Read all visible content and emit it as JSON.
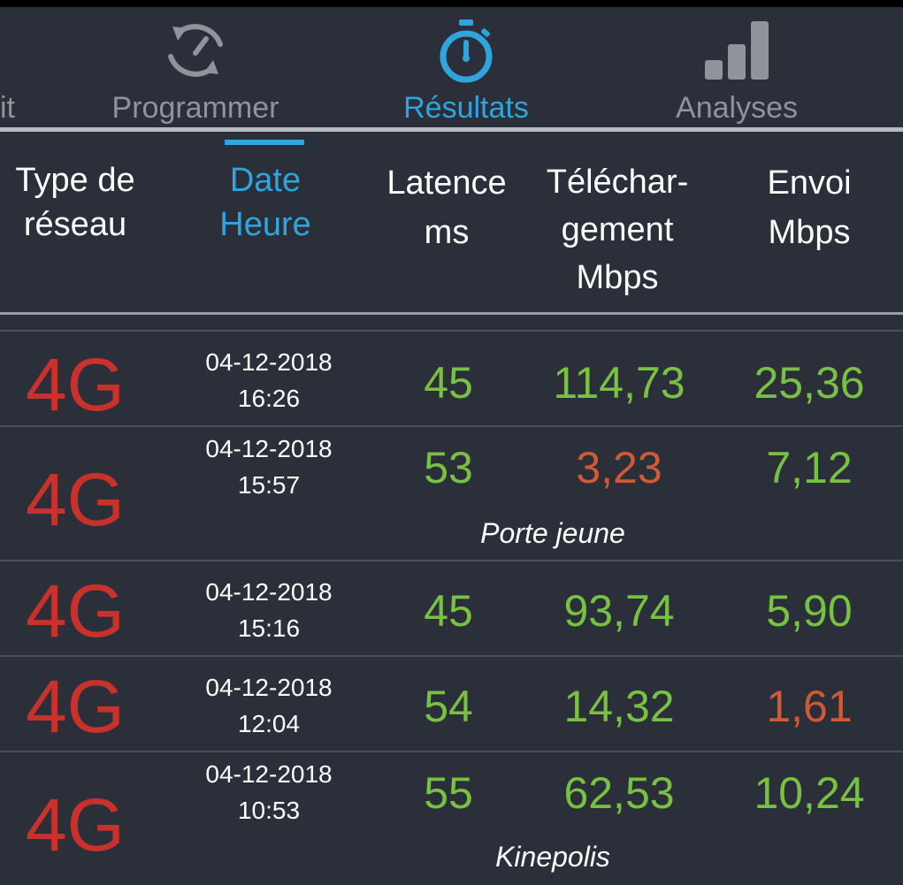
{
  "tabs": [
    {
      "label": "it",
      "icon": "partial-tab"
    },
    {
      "label": "Programmer",
      "icon": "refresh-gauge-icon"
    },
    {
      "label": "Résultats",
      "icon": "stopwatch-icon"
    },
    {
      "label": "Analyses",
      "icon": "bar-chart-icon"
    }
  ],
  "columns": {
    "network": [
      "Type de",
      "réseau"
    ],
    "datetime": [
      "Date",
      "Heure"
    ],
    "latency": [
      "Latence",
      "ms"
    ],
    "download": [
      "Téléchar-",
      "gement",
      "Mbps"
    ],
    "upload": [
      "Envoi",
      "Mbps"
    ]
  },
  "colors": {
    "accent": "#2ea6dd",
    "good": "#79c143",
    "bad": "#cf5a34",
    "network": "#c8322b",
    "background": "#2b2f3a"
  },
  "rows": [
    {
      "network": "4G",
      "date": "04-12-2018",
      "time": "16:26",
      "latency": "45",
      "download": "114,73",
      "upload": "25,36",
      "download_status": "good",
      "upload_status": "good",
      "note": ""
    },
    {
      "network": "4G",
      "date": "04-12-2018",
      "time": "15:57",
      "latency": "53",
      "download": "3,23",
      "upload": "7,12",
      "download_status": "bad",
      "upload_status": "good",
      "note": "Porte jeune"
    },
    {
      "network": "4G",
      "date": "04-12-2018",
      "time": "15:16",
      "latency": "45",
      "download": "93,74",
      "upload": "5,90",
      "download_status": "good",
      "upload_status": "good",
      "note": ""
    },
    {
      "network": "4G",
      "date": "04-12-2018",
      "time": "12:04",
      "latency": "54",
      "download": "14,32",
      "upload": "1,61",
      "download_status": "good",
      "upload_status": "bad",
      "note": ""
    },
    {
      "network": "4G",
      "date": "04-12-2018",
      "time": "10:53",
      "latency": "55",
      "download": "62,53",
      "upload": "10,24",
      "download_status": "good",
      "upload_status": "good",
      "note": "Kinepolis"
    }
  ]
}
